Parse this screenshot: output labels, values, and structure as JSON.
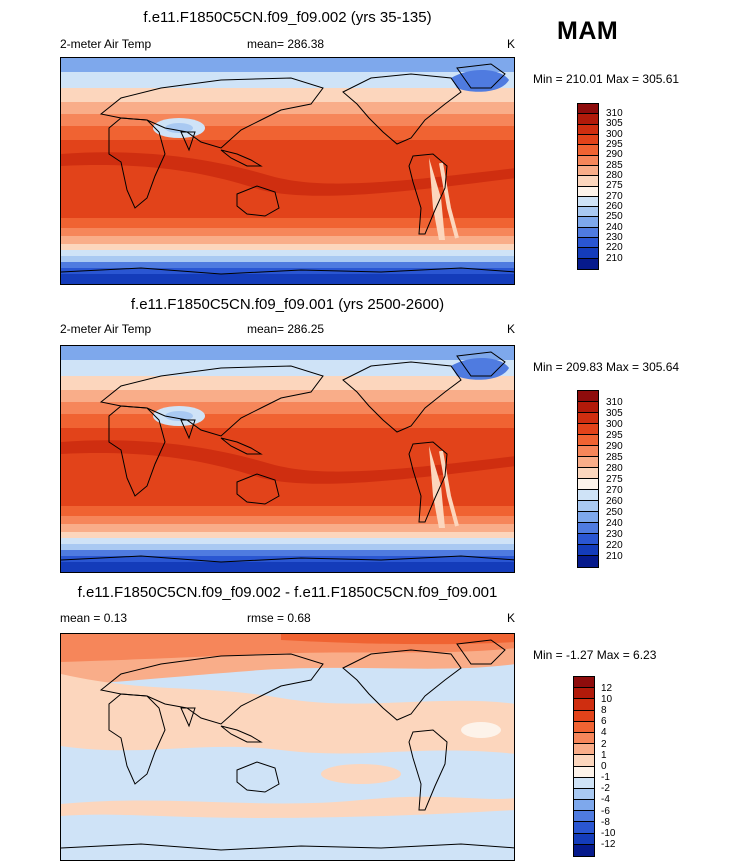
{
  "season": "MAM",
  "panels": [
    {
      "title": "f.e11.F1850C5CN.f09_f09.002 (yrs 35-135)",
      "left_label": "2-meter Air Temp",
      "center_label": "mean= 286.38",
      "right_label": "K",
      "minmax": "Min = 210.01 Max = 305.61",
      "levels": [
        "310",
        "305",
        "300",
        "295",
        "290",
        "285",
        "280",
        "275",
        "270",
        "260",
        "250",
        "240",
        "230",
        "220",
        "210"
      ],
      "colors": [
        "#8e0c0c",
        "#b11a0a",
        "#cf2e10",
        "#e2431a",
        "#f06332",
        "#f6865a",
        "#f9ad89",
        "#fcd6bd",
        "#fdf3ea",
        "#cfe3f7",
        "#a9c9f2",
        "#7ea8ec",
        "#4f7be0",
        "#2a56d2",
        "#143cba",
        "#061a8c"
      ]
    },
    {
      "title": "f.e11.F1850C5CN.f09_f09.001 (yrs 2500-2600)",
      "left_label": "2-meter Air Temp",
      "center_label": "mean= 286.25",
      "right_label": "K",
      "minmax": "Min = 209.83 Max = 305.64",
      "levels": [
        "310",
        "305",
        "300",
        "295",
        "290",
        "285",
        "280",
        "275",
        "270",
        "260",
        "250",
        "240",
        "230",
        "220",
        "210"
      ],
      "colors": [
        "#8e0c0c",
        "#b11a0a",
        "#cf2e10",
        "#e2431a",
        "#f06332",
        "#f6865a",
        "#f9ad89",
        "#fcd6bd",
        "#fdf3ea",
        "#cfe3f7",
        "#a9c9f2",
        "#7ea8ec",
        "#4f7be0",
        "#2a56d2",
        "#143cba",
        "#061a8c"
      ]
    },
    {
      "title": "f.e11.F1850C5CN.f09_f09.002 - f.e11.F1850C5CN.f09_f09.001",
      "left_label": "mean =   0.13",
      "center_label": "rmse =   0.68",
      "right_label": "K",
      "minmax": "Min =  -1.27 Max =    6.23",
      "levels": [
        "12",
        "10",
        "8",
        "6",
        "4",
        "2",
        "1",
        "0",
        "-1",
        "-2",
        "-4",
        "-6",
        "-8",
        "-10",
        "-12"
      ],
      "colors": [
        "#8e0c0c",
        "#b11a0a",
        "#cf2e10",
        "#e2431a",
        "#f06332",
        "#f6865a",
        "#f9ad89",
        "#fcd6bd",
        "#fdf3ea",
        "#cfe3f7",
        "#a9c9f2",
        "#7ea8ec",
        "#4f7be0",
        "#2a56d2",
        "#143cba",
        "#061a8c"
      ]
    }
  ]
}
